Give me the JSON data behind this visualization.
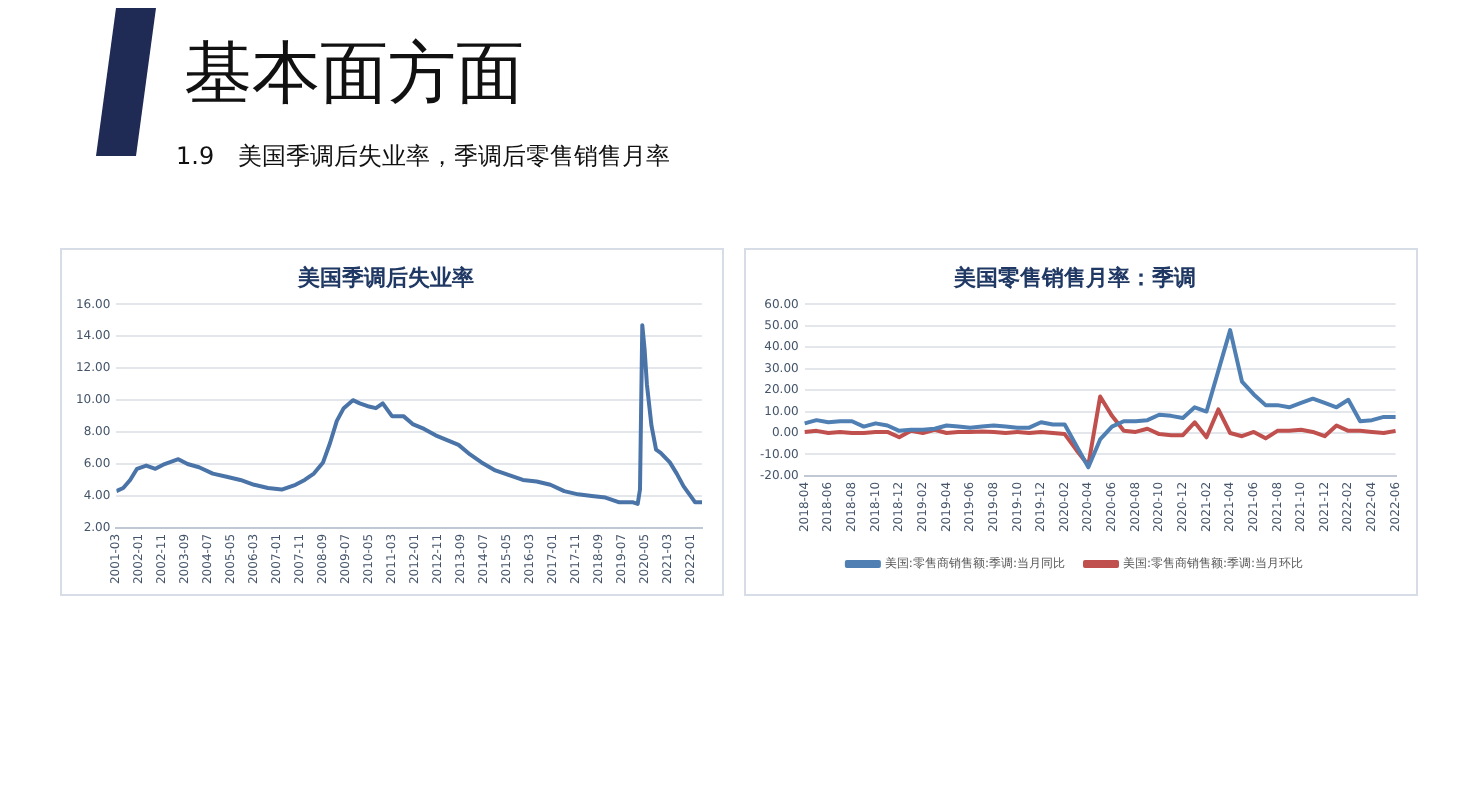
{
  "chart_data": [
    {
      "type": "line",
      "title": "美国季调后失业率",
      "annotations": [
        "基本面方面",
        "1.9　美国季调后失业率，季调后零售销售月率"
      ],
      "x": [
        "2001-03",
        "2001-06",
        "2001-09",
        "2001-12",
        "2002-04",
        "2002-08",
        "2002-12",
        "2003-06",
        "2003-10",
        "2004-03",
        "2004-09",
        "2005-03",
        "2005-09",
        "2006-03",
        "2006-09",
        "2007-03",
        "2007-09",
        "2008-01",
        "2008-05",
        "2008-09",
        "2008-12",
        "2009-03",
        "2009-06",
        "2009-10",
        "2010-01",
        "2010-05",
        "2010-08",
        "2010-11",
        "2011-03",
        "2011-08",
        "2011-12",
        "2012-05",
        "2012-10",
        "2013-03",
        "2013-08",
        "2014-01",
        "2014-06",
        "2014-12",
        "2015-06",
        "2015-12",
        "2016-06",
        "2016-12",
        "2017-06",
        "2017-12",
        "2018-06",
        "2018-12",
        "2019-06",
        "2019-12",
        "2020-02",
        "2020-03",
        "2020-04",
        "2020-05",
        "2020-06",
        "2020-08",
        "2020-10",
        "2020-12",
        "2021-04",
        "2021-07",
        "2021-10",
        "2022-01",
        "2022-03",
        "2022-06"
      ],
      "series": [
        {
          "color": "#4a74a8",
          "values": [
            4.3,
            4.5,
            5.0,
            5.7,
            5.9,
            5.7,
            6.0,
            6.3,
            6.0,
            5.8,
            5.4,
            5.2,
            5.0,
            4.7,
            4.5,
            4.4,
            4.7,
            5.0,
            5.4,
            6.1,
            7.3,
            8.7,
            9.5,
            10.0,
            9.8,
            9.6,
            9.5,
            9.8,
            9.0,
            9.0,
            8.5,
            8.2,
            7.8,
            7.5,
            7.2,
            6.6,
            6.1,
            5.6,
            5.3,
            5.0,
            4.9,
            4.7,
            4.3,
            4.1,
            4.0,
            3.9,
            3.6,
            3.6,
            3.5,
            4.4,
            14.7,
            13.2,
            11.0,
            8.4,
            6.9,
            6.7,
            6.1,
            5.4,
            4.6,
            4.0,
            3.6,
            3.6
          ]
        }
      ],
      "xlim": [
        "2001-03",
        "2022-06"
      ],
      "xticks": [
        "2001-03",
        "2002-01",
        "2002-11",
        "2003-09",
        "2004-07",
        "2005-05",
        "2006-03",
        "2007-01",
        "2007-11",
        "2008-09",
        "2009-07",
        "2010-05",
        "2011-03",
        "2012-01",
        "2012-11",
        "2013-09",
        "2014-07",
        "2015-05",
        "2016-03",
        "2017-01",
        "2017-11",
        "2018-09",
        "2019-07",
        "2020-05",
        "2021-03",
        "2022-01"
      ],
      "ylim": [
        2,
        16
      ],
      "yticks": [
        {
          "value": 2,
          "label": "2.00"
        },
        {
          "value": 4,
          "label": "4.00"
        },
        {
          "value": 6,
          "label": "6.00"
        },
        {
          "value": 8,
          "label": "8.00"
        },
        {
          "value": 10,
          "label": "10.00"
        },
        {
          "value": 12,
          "label": "12.00"
        },
        {
          "value": 14,
          "label": "14.00"
        },
        {
          "value": 16,
          "label": "16.00"
        }
      ],
      "grid": "y",
      "legend": false,
      "marker": "none",
      "line_style": "solid"
    },
    {
      "type": "line",
      "title": "美国零售销售月率：季调",
      "categories": [
        "2018-04",
        null,
        "2018-06",
        null,
        "2018-08",
        null,
        "2018-10",
        null,
        "2018-12",
        null,
        "2019-02",
        null,
        "2019-04",
        null,
        "2019-06",
        null,
        "2019-08",
        null,
        "2019-10",
        null,
        "2019-12",
        null,
        "2020-02",
        null,
        "2020-04",
        null,
        "2020-06",
        null,
        "2020-08",
        null,
        "2020-10",
        null,
        "2020-12",
        null,
        "2021-02",
        null,
        "2021-04",
        null,
        "2021-06",
        null,
        "2021-08",
        null,
        "2021-10",
        null,
        "2021-12",
        null,
        "2022-02",
        null,
        "2022-04",
        null,
        "2022-06"
      ],
      "series": [
        {
          "name": "美国:零售商销售额:季调:当月同比",
          "color": "#4f7fb3",
          "values": [
            4.5,
            6,
            5,
            5.5,
            5.5,
            3,
            4.5,
            3.5,
            1,
            1.5,
            1.5,
            2,
            3.5,
            3,
            2.5,
            3,
            3.5,
            3,
            2.5,
            2.5,
            5,
            4,
            4,
            -6,
            -16,
            -3,
            3,
            5.5,
            5.5,
            6,
            8.5,
            8,
            7,
            12,
            10,
            29,
            48,
            24,
            18,
            13,
            13,
            12,
            14,
            16,
            14,
            12,
            15.5,
            5.5,
            6,
            7.5,
            7.5
          ]
        },
        {
          "name": "美国:零售商销售额:季调:当月环比",
          "color": "#c0504d",
          "values": [
            0.5,
            1,
            0,
            0.5,
            0,
            0,
            0.5,
            0.5,
            -2,
            1,
            0,
            1.5,
            0,
            0.5,
            0.5,
            0.7,
            0.5,
            0,
            0.5,
            0,
            0.5,
            0,
            -0.5,
            -8,
            -15,
            17,
            8,
            1,
            0.5,
            2,
            -0.5,
            -1,
            -1,
            5,
            -2,
            11,
            0,
            -1.5,
            0.5,
            -2.5,
            1,
            1,
            1.5,
            0.5,
            -1.5,
            3.5,
            1,
            1,
            0.5,
            0,
            1
          ]
        }
      ],
      "ylim": [
        -20,
        60
      ],
      "yticks": [
        {
          "value": -20,
          "label": "-20.00"
        },
        {
          "value": -10,
          "label": "-10.00"
        },
        {
          "value": 0,
          "label": "0.00"
        },
        {
          "value": 10,
          "label": "10.00"
        },
        {
          "value": 20,
          "label": "20.00"
        },
        {
          "value": 30,
          "label": "30.00"
        },
        {
          "value": 40,
          "label": "40.00"
        },
        {
          "value": 50,
          "label": "50.00"
        },
        {
          "value": 60,
          "label": "60.00"
        }
      ],
      "grid": "y",
      "legend": "bottom",
      "marker": "none",
      "line_style": "solid"
    }
  ]
}
